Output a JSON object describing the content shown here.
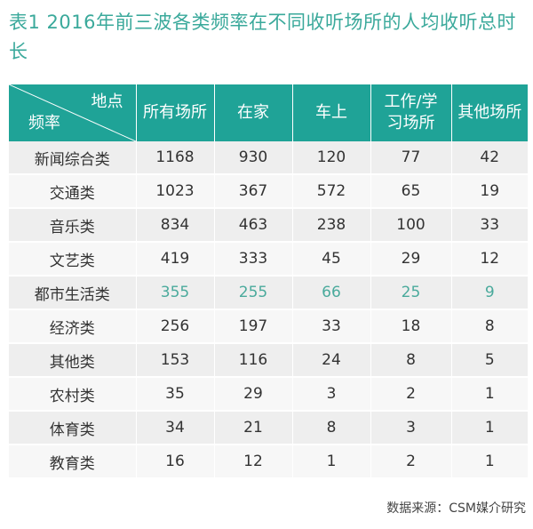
{
  "title": "表1  2016年前三波各类频率在不同收听场所的人均收听总时长",
  "header": {
    "corner_top": "地点",
    "corner_bottom": "频率",
    "columns": [
      "所有场所",
      "在家",
      "车上",
      "工作/学习场所",
      "其他场所"
    ]
  },
  "rows": [
    {
      "name": "新闻综合类",
      "values": [
        "1168",
        "930",
        "120",
        "77",
        "42"
      ]
    },
    {
      "name": "交通类",
      "values": [
        "1023",
        "367",
        "572",
        "65",
        "19"
      ]
    },
    {
      "name": "音乐类",
      "values": [
        "834",
        "463",
        "238",
        "100",
        "33"
      ]
    },
    {
      "name": "文艺类",
      "values": [
        "419",
        "333",
        "45",
        "29",
        "12"
      ]
    },
    {
      "name": "都市生活类",
      "values": [
        "355",
        "255",
        "66",
        "25",
        "9"
      ]
    },
    {
      "name": "经济类",
      "values": [
        "256",
        "197",
        "33",
        "18",
        "8"
      ]
    },
    {
      "name": "其他类",
      "values": [
        "153",
        "116",
        "24",
        "8",
        "5"
      ]
    },
    {
      "name": "农村类",
      "values": [
        "35",
        "29",
        "3",
        "2",
        "1"
      ]
    },
    {
      "name": "体育类",
      "values": [
        "34",
        "21",
        "8",
        "3",
        "1"
      ]
    },
    {
      "name": "教育类",
      "values": [
        "16",
        "12",
        "1",
        "2",
        "1"
      ]
    }
  ],
  "highlight_row": "都市生活类",
  "highlight_color": "#4aaa9c",
  "header_color": "#1fa397",
  "source": "数据来源：CSM媒介研究"
}
